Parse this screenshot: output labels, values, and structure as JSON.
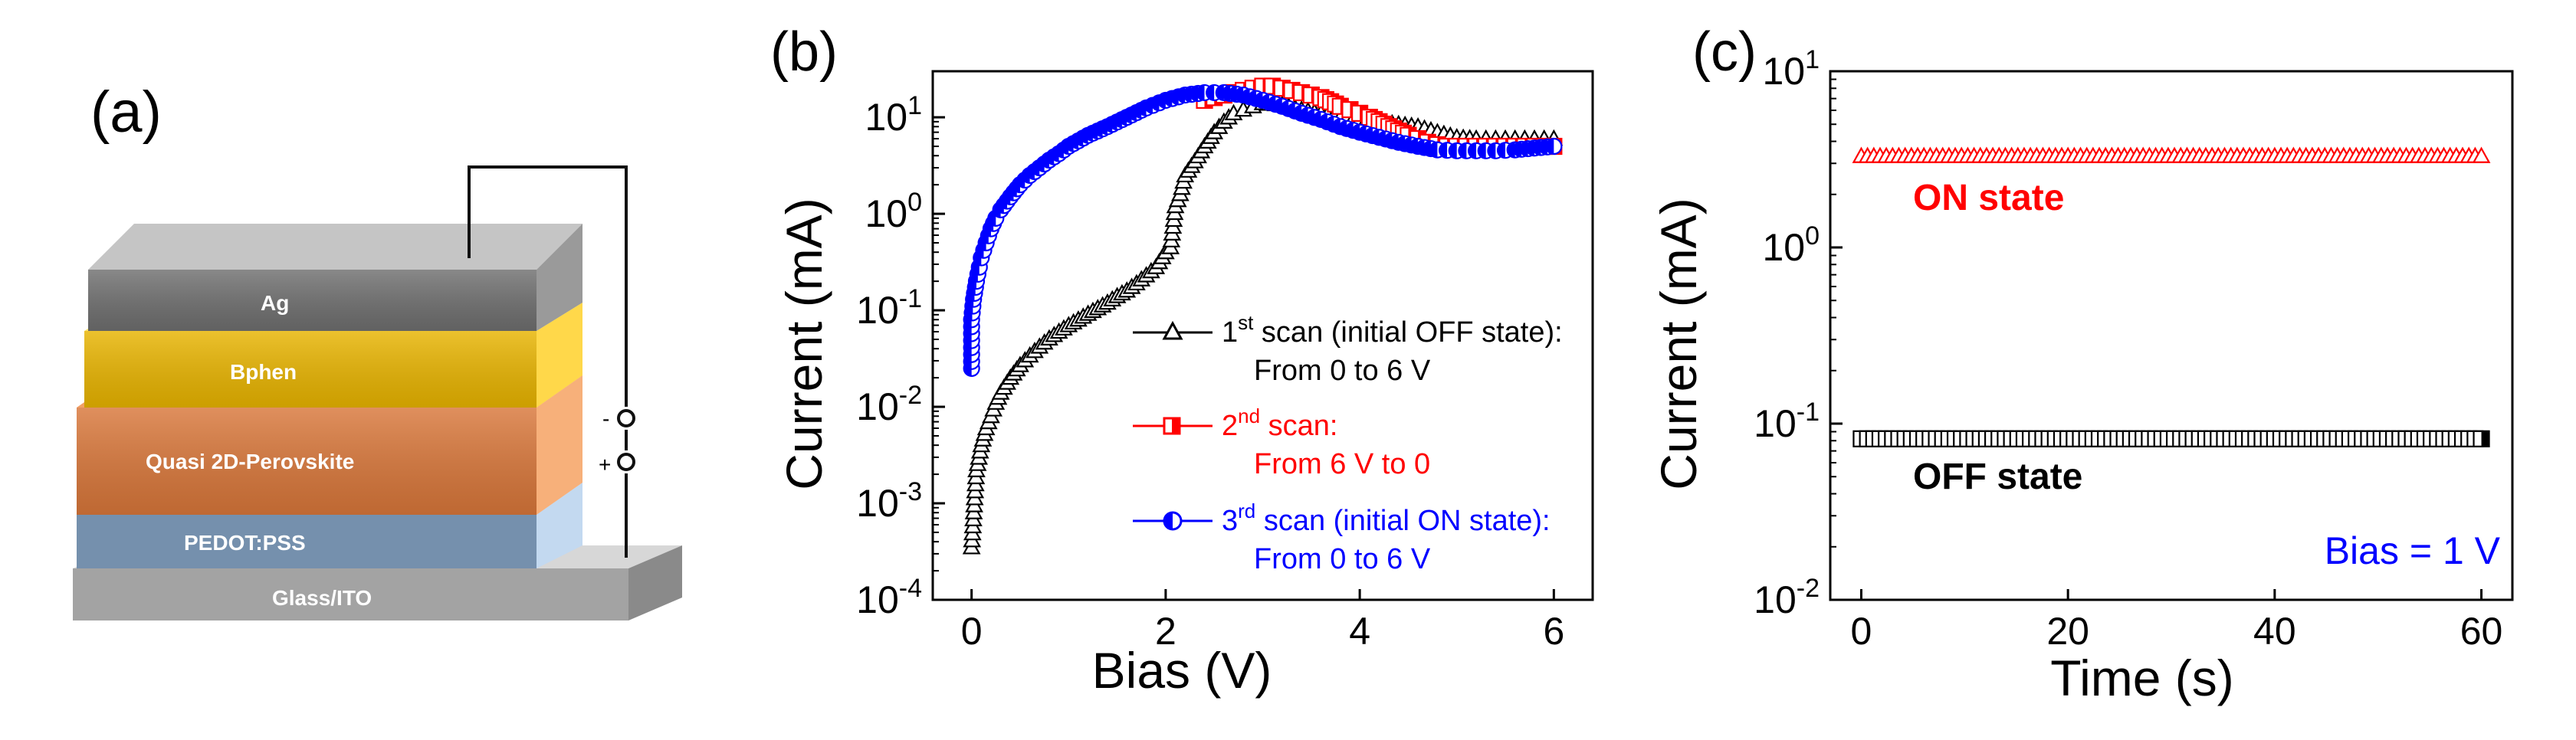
{
  "panels": {
    "a": {
      "label": "(a)",
      "layers": [
        {
          "name": "Ag",
          "color": "#6f6f6f"
        },
        {
          "name": "Bphen",
          "color": "#e8b400"
        },
        {
          "name": "Quasi 2D-Perovskite",
          "color": "#d9773a"
        },
        {
          "name": "PEDOT:PSS",
          "color": "#7b93ad"
        },
        {
          "name": "Glass/ITO",
          "color": "#9c9c9c"
        }
      ],
      "terminals": {
        "minus": "-",
        "plus": "+"
      }
    },
    "b": {
      "label": "(b)"
    },
    "c": {
      "label": "(c)"
    }
  },
  "chart_data": [
    {
      "panel": "b",
      "type": "scatter",
      "title": "",
      "xlabel": "Bias (V)",
      "ylabel": "Current (mA)",
      "xlim": [
        -0.4,
        6.4
      ],
      "xticks": [
        0,
        2,
        4,
        6
      ],
      "xtick_labels": [
        "0",
        "2",
        "4",
        "6"
      ],
      "yscale": "log",
      "ylim": [
        0.0001,
        30
      ],
      "yticks": [
        0.0001,
        0.001,
        0.01,
        0.1,
        1,
        10
      ],
      "ytick_base": "10",
      "ytick_exponents": [
        "-4",
        "-3",
        "-2",
        "-1",
        "0",
        "1"
      ],
      "series": [
        {
          "name": "1st scan (initial OFF state): From 0 to 6 V",
          "legend_pre": "1",
          "legend_sup": "st",
          "legend_post": " scan (initial OFF state):",
          "legend_line2": "From 0 to 6 V",
          "color": "#000000",
          "marker": "triangle",
          "x": [
            0.0,
            0.05,
            0.1,
            0.15,
            0.2,
            0.25,
            0.3,
            0.4,
            0.5,
            0.6,
            0.7,
            0.8,
            0.9,
            1.0,
            1.1,
            1.2,
            1.3,
            1.4,
            1.5,
            1.6,
            1.7,
            1.8,
            1.9,
            2.0,
            2.05,
            2.1,
            2.15,
            2.2,
            2.3,
            2.4,
            2.5,
            2.6,
            2.7,
            2.8,
            2.9,
            3.0,
            3.2,
            3.4,
            3.6,
            3.8,
            4.0,
            4.2,
            4.4,
            4.6,
            4.8,
            5.0,
            5.2,
            5.4,
            5.6,
            5.8,
            6.0
          ],
          "y": [
            0.00035,
            0.0022,
            0.004,
            0.006,
            0.008,
            0.011,
            0.014,
            0.02,
            0.027,
            0.034,
            0.042,
            0.051,
            0.06,
            0.07,
            0.08,
            0.092,
            0.105,
            0.12,
            0.14,
            0.16,
            0.19,
            0.23,
            0.28,
            0.4,
            0.45,
            1.2,
            1.6,
            2.5,
            3.5,
            5.0,
            7.0,
            9.0,
            11.0,
            12.0,
            13.0,
            14.0,
            13.5,
            12.0,
            11.0,
            10.0,
            9.5,
            9.0,
            8.5,
            8.0,
            7.0,
            6.2,
            6.0,
            6.0,
            6.0,
            6.0,
            6.0
          ]
        },
        {
          "name": "2nd scan: From 6 V to 0",
          "legend_pre": "2",
          "legend_sup": "nd",
          "legend_post": " scan:",
          "legend_line2": "From 6 V to 0",
          "color": "#ff0000",
          "marker": "square",
          "x": [
            2.4,
            2.5,
            2.6,
            2.7,
            2.8,
            2.9,
            3.0,
            3.1,
            3.2,
            3.3,
            3.4,
            3.5,
            3.6,
            3.7,
            3.8,
            3.9,
            4.0,
            4.1,
            4.2,
            4.3,
            4.4,
            4.5,
            4.6,
            4.7,
            4.8,
            4.9,
            5.0,
            5.2,
            5.4,
            5.6,
            5.8,
            6.0
          ],
          "y": [
            15.0,
            16.0,
            17.0,
            18.0,
            19.0,
            20.0,
            21.0,
            21.0,
            20.0,
            19.0,
            18.0,
            17.0,
            16.0,
            14.5,
            13.0,
            12.0,
            11.0,
            10.0,
            9.0,
            8.0,
            7.2,
            6.5,
            6.0,
            5.5,
            5.2,
            5.0,
            5.0,
            5.0,
            5.0,
            5.0,
            5.0,
            5.0
          ]
        },
        {
          "name": "3rd scan (initial ON state): From 0 to 6 V",
          "legend_pre": "3",
          "legend_sup": "rd",
          "legend_post": " scan (initial ON state):",
          "legend_line2": "From 0 to 6 V",
          "color": "#0000ff",
          "marker": "half-circle",
          "x": [
            0.0,
            0.0,
            0.02,
            0.05,
            0.08,
            0.1,
            0.15,
            0.2,
            0.25,
            0.3,
            0.4,
            0.5,
            0.6,
            0.7,
            0.8,
            0.9,
            1.0,
            1.2,
            1.4,
            1.6,
            1.8,
            2.0,
            2.2,
            2.4,
            2.6,
            2.8,
            3.0,
            3.2,
            3.4,
            3.6,
            3.8,
            4.0,
            4.2,
            4.4,
            4.6,
            4.8,
            5.0,
            5.2,
            5.4,
            5.6,
            5.8,
            6.0
          ],
          "y": [
            0.025,
            0.08,
            0.13,
            0.2,
            0.28,
            0.35,
            0.5,
            0.7,
            0.9,
            1.1,
            1.5,
            2.0,
            2.5,
            3.0,
            3.6,
            4.2,
            5.0,
            6.5,
            8.0,
            10.0,
            12.5,
            15.0,
            17.0,
            18.0,
            18.0,
            17.0,
            15.0,
            13.0,
            11.0,
            9.5,
            8.0,
            7.0,
            6.2,
            5.5,
            5.0,
            4.6,
            4.5,
            4.5,
            4.5,
            4.6,
            4.8,
            5.0
          ]
        }
      ]
    },
    {
      "panel": "c",
      "type": "scatter",
      "title": "",
      "xlabel": "Time (s)",
      "ylabel": "Current (mA)",
      "xlim": [
        -3,
        63
      ],
      "xticks": [
        0,
        20,
        40,
        60
      ],
      "xtick_labels": [
        "0",
        "20",
        "40",
        "60"
      ],
      "yscale": "log",
      "ylim": [
        0.01,
        10
      ],
      "yticks": [
        0.01,
        0.1,
        1,
        10
      ],
      "ytick_base": "10",
      "ytick_exponents": [
        "-2",
        "-1",
        "0",
        "1"
      ],
      "series": [
        {
          "name": "ON state",
          "color": "#ff0000",
          "marker": "triangle",
          "x_start": 0,
          "x_end": 60,
          "count": 100,
          "y": 3.3
        },
        {
          "name": "OFF state",
          "color": "#000000",
          "marker": "square",
          "x_start": 0,
          "x_end": 60,
          "count": 100,
          "y": 0.082
        }
      ],
      "annotations": [
        {
          "text": "ON state",
          "color": "#ff0000"
        },
        {
          "text": "OFF state",
          "color": "#000000"
        },
        {
          "text": "Bias = 1 V",
          "color": "#0000ff"
        }
      ]
    }
  ]
}
